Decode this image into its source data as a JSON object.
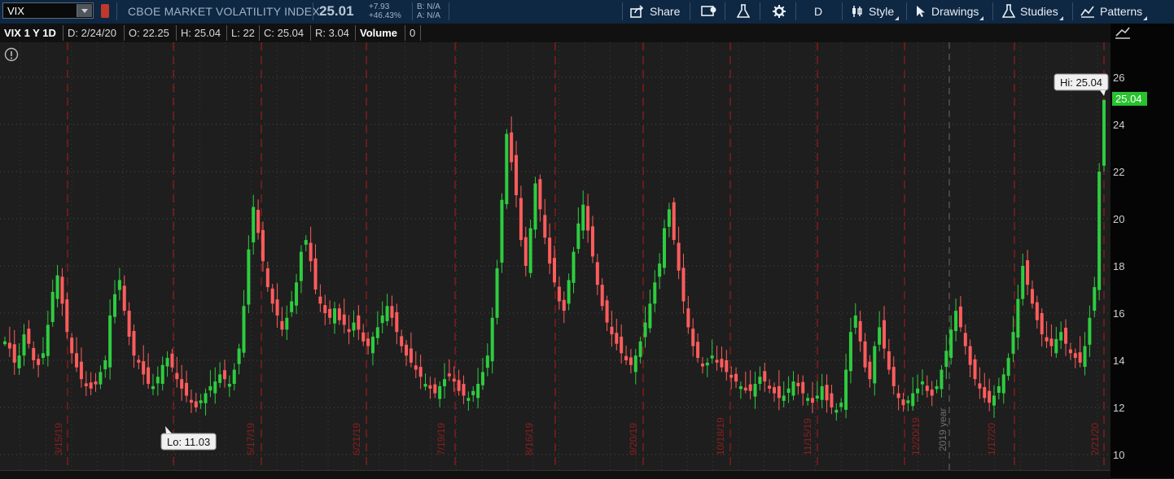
{
  "toolbar": {
    "symbol": "VIX",
    "description": "CBOE MARKET VOLATILITY INDEX",
    "last": "25.01",
    "change": "+7.93",
    "change_pct": "+46.43%",
    "bid": "B: N/A",
    "ask": "A: N/A",
    "buttons": {
      "share": "Share",
      "aggregation": "D",
      "style": "Style",
      "drawings": "Drawings",
      "studies": "Studies",
      "patterns": "Patterns"
    }
  },
  "infobar": {
    "title": "VIX 1 Y 1D",
    "date": "D: 2/24/20",
    "open": "O: 22.25",
    "high": "H: 25.04",
    "low": "L: 22",
    "close": "C: 25.04",
    "range": "R: 3.04",
    "volume_label": "Volume",
    "volume": "0"
  },
  "chart_data": {
    "type": "candlestick",
    "symbol": "VIX",
    "ylim": [
      10,
      27
    ],
    "y_ticks": [
      10,
      12,
      14,
      16,
      18,
      20,
      22,
      24,
      26
    ],
    "x_labels": [
      "3/15/19",
      "5/17/19",
      "6/21/19",
      "7/19/19",
      "8/16/19",
      "9/20/19",
      "10/18/19",
      "11/15/19",
      "12/20/19",
      "1/17/20",
      "2/21/20"
    ],
    "year_marker": "2019 year",
    "hi_label": "Hi: 25.04",
    "lo_label": "Lo: 11.03",
    "price_badge": "25.04",
    "close_series": [
      14.8,
      14.5,
      13.9,
      14.2,
      15.1,
      14.7,
      14.0,
      13.8,
      14.3,
      15.5,
      16.9,
      17.6,
      16.4,
      15.2,
      14.3,
      13.7,
      13.2,
      13.0,
      12.8,
      13.1,
      13.5,
      14.0,
      15.9,
      16.8,
      17.4,
      16.1,
      15.0,
      14.2,
      13.9,
      13.4,
      13.0,
      12.9,
      13.3,
      13.8,
      14.1,
      13.7,
      13.2,
      12.8,
      12.5,
      12.2,
      12.0,
      12.3,
      12.6,
      12.9,
      13.1,
      13.4,
      13.2,
      13.0,
      13.6,
      14.5,
      16.3,
      18.7,
      20.5,
      19.4,
      18.2,
      17.1,
      16.4,
      15.9,
      15.3,
      15.8,
      16.5,
      17.3,
      18.6,
      19.1,
      18.2,
      17.0,
      16.4,
      16.0,
      15.8,
      16.2,
      15.7,
      15.5,
      15.2,
      15.6,
      15.3,
      14.8,
      14.6,
      15.0,
      15.4,
      15.9,
      16.3,
      15.8,
      15.2,
      14.6,
      14.2,
      13.9,
      13.6,
      13.3,
      13.0,
      12.8,
      12.6,
      12.9,
      13.2,
      13.4,
      13.1,
      12.7,
      12.5,
      12.4,
      12.7,
      13.0,
      13.5,
      14.2,
      15.8,
      17.9,
      20.8,
      23.6,
      22.4,
      21.0,
      19.1,
      18.0,
      19.6,
      21.5,
      20.4,
      19.2,
      18.1,
      17.3,
      16.5,
      16.1,
      17.4,
      18.6,
      19.8,
      20.6,
      19.5,
      18.4,
      17.2,
      16.3,
      15.6,
      15.1,
      14.7,
      14.3,
      14.0,
      13.8,
      14.2,
      14.8,
      15.6,
      16.4,
      17.3,
      18.1,
      19.6,
      20.4,
      19.1,
      17.8,
      16.5,
      15.4,
      14.6,
      14.1,
      13.8,
      13.9,
      14.2,
      14.0,
      13.7,
      13.5,
      13.3,
      13.1,
      12.9,
      12.8,
      12.7,
      13.0,
      13.3,
      13.1,
      12.8,
      12.6,
      12.4,
      12.5,
      12.8,
      13.1,
      12.9,
      12.6,
      12.4,
      12.2,
      12.5,
      12.9,
      12.3,
      12.0,
      11.9,
      12.2,
      13.6,
      15.2,
      15.9,
      14.8,
      13.7,
      13.2,
      14.6,
      15.4,
      14.5,
      13.6,
      12.9,
      12.4,
      12.1,
      12.3,
      12.6,
      12.8,
      13.1,
      12.7,
      12.5,
      12.9,
      13.6,
      14.4,
      15.3,
      16.1,
      15.4,
      14.6,
      13.8,
      13.2,
      12.8,
      12.4,
      12.2,
      12.5,
      12.9,
      13.4,
      14.1,
      15.2,
      16.6,
      18.0,
      17.2,
      16.4,
      15.7,
      15.1,
      14.8,
      14.6,
      14.9,
      15.2,
      14.7,
      14.3,
      14.1,
      13.9,
      14.6,
      15.8,
      17.1,
      22.0,
      25.04
    ]
  }
}
